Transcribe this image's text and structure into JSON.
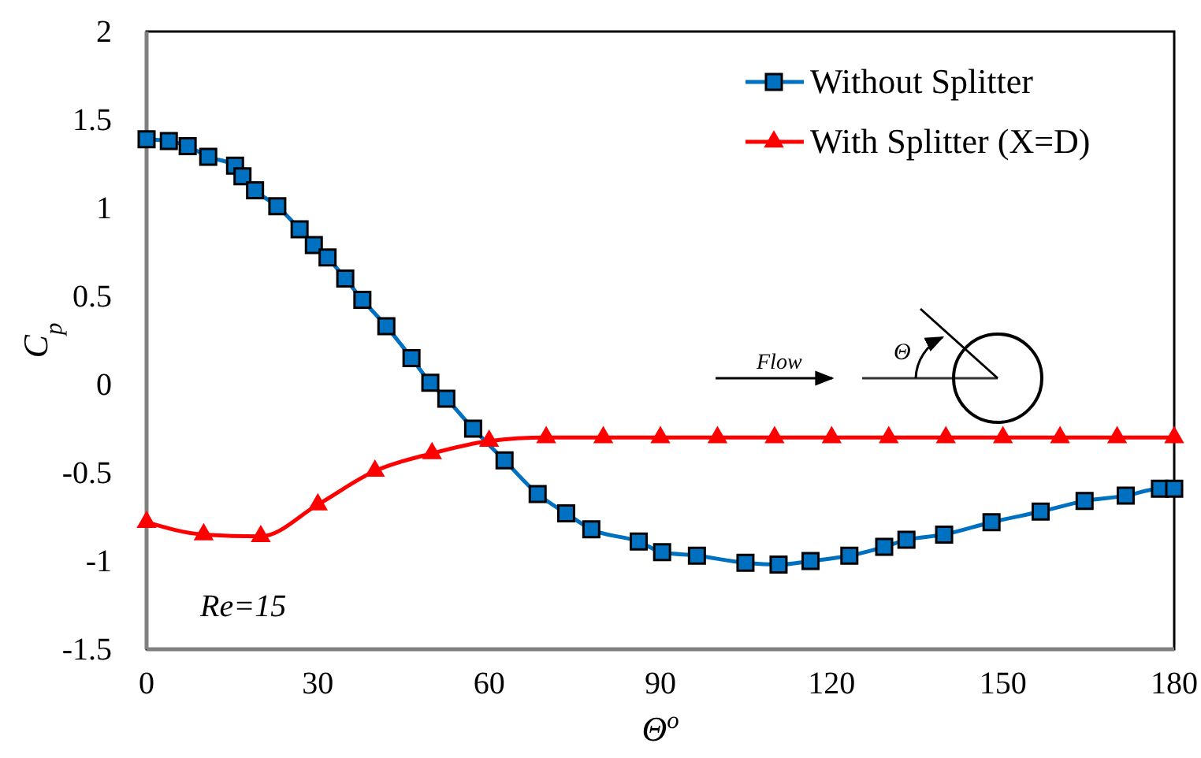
{
  "chart_data": {
    "type": "line",
    "xlabel": "Θ$^{o}$",
    "ylabel": "C$_{p}$",
    "xlim": [
      0,
      180
    ],
    "ylim": [
      -1.5,
      2
    ],
    "xticks": [
      0,
      30,
      60,
      90,
      120,
      150,
      180
    ],
    "yticks": [
      -1.5,
      -1,
      -0.5,
      0,
      0.5,
      1,
      1.5,
      2
    ],
    "grid": false,
    "legend": "top right",
    "annotations": [
      "Re=15",
      "Flow",
      "Θ"
    ],
    "series": [
      {
        "name": "Without Splitter",
        "color": "#0070c0",
        "marker": "square",
        "x": [
          0,
          3.9,
          7.2,
          10.8,
          15.5,
          16.8,
          19,
          22.9,
          26.8,
          29.3,
          31.7,
          34.8,
          37.8,
          42,
          46.4,
          49.7,
          52.5,
          57.2,
          62.7,
          68.5,
          73.5,
          77.9,
          86.2,
          90.3,
          96.4,
          104.9,
          110.7,
          116.3,
          123.1,
          129.2,
          133.1,
          139.7,
          148,
          156.6,
          164.3,
          171.5,
          177.5,
          180
        ],
        "values": [
          1.39,
          1.38,
          1.35,
          1.29,
          1.24,
          1.18,
          1.1,
          1.01,
          0.88,
          0.79,
          0.72,
          0.6,
          0.48,
          0.33,
          0.15,
          0.01,
          -0.08,
          -0.25,
          -0.43,
          -0.62,
          -0.73,
          -0.82,
          -0.89,
          -0.95,
          -0.97,
          -1.01,
          -1.02,
          -1,
          -0.97,
          -0.92,
          -0.88,
          -0.85,
          -0.78,
          -0.72,
          -0.66,
          -0.63,
          -0.59,
          -0.59
        ]
      },
      {
        "name": "With Splitter (X=D)",
        "color": "#ff0000",
        "marker": "triangle",
        "x": [
          0,
          10,
          20,
          30,
          40,
          50,
          60,
          70,
          80,
          90,
          100,
          110,
          120,
          130,
          140,
          150,
          160,
          170,
          180
        ],
        "values": [
          -0.78,
          -0.85,
          -0.86,
          -0.68,
          -0.49,
          -0.39,
          -0.32,
          -0.3,
          -0.3,
          -0.3,
          -0.3,
          -0.3,
          -0.3,
          -0.3,
          -0.3,
          -0.3,
          -0.3,
          -0.3,
          -0.3
        ]
      }
    ]
  }
}
